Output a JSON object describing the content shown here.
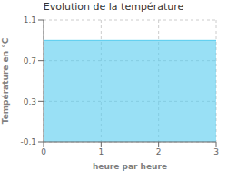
{
  "chart_data": {
    "type": "area",
    "title": "Evolution de la température",
    "xlabel": "heure par heure",
    "ylabel": "Température en °C",
    "x": [
      0,
      3
    ],
    "values": [
      0.9,
      0.9
    ],
    "color": "#55ccee",
    "xlim": [
      0,
      3
    ],
    "ylim": [
      -0.1,
      1.1
    ],
    "xticks": [
      0,
      1,
      2,
      3
    ],
    "yticks": [
      -0.1,
      0.3,
      0.7,
      1.1
    ],
    "grid": true
  }
}
